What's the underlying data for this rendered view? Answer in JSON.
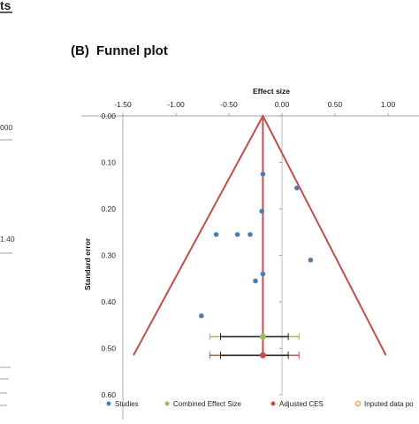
{
  "left_panel": {
    "title_fragment": "ts",
    "value_top": "000",
    "value_mid": "1.40"
  },
  "panel": {
    "title_prefix": "(B)",
    "title": "Funnel plot"
  },
  "chart_data": {
    "type": "scatter",
    "title": "Funnel plot",
    "xlabel": "Effect size",
    "ylabel": "Standard error",
    "xlim": [
      -1.5,
      1.0
    ],
    "ylim": [
      0.0,
      0.6
    ],
    "y_reversed": true,
    "x_ticks": [
      "-1.50",
      "-1.00",
      "-0.50",
      "0.00",
      "0.50",
      "1.00"
    ],
    "x_tick_values": [
      -1.5,
      -1.0,
      -0.5,
      0.0,
      0.5,
      1.0
    ],
    "y_ticks": [
      "0.00",
      "0.10",
      "0.20",
      "0.30",
      "0.40",
      "0.50",
      "0.60"
    ],
    "y_tick_values": [
      0.0,
      0.1,
      0.2,
      0.3,
      0.4,
      0.5,
      0.6
    ],
    "x_axis_position": "top",
    "grid": false,
    "legend_position": "bottom",
    "studies": [
      {
        "x": -0.18,
        "y": 0.125
      },
      {
        "x": 0.14,
        "y": 0.155
      },
      {
        "x": -0.19,
        "y": 0.205
      },
      {
        "x": -0.62,
        "y": 0.255
      },
      {
        "x": -0.42,
        "y": 0.255
      },
      {
        "x": -0.3,
        "y": 0.255
      },
      {
        "x": 0.27,
        "y": 0.31
      },
      {
        "x": -0.18,
        "y": 0.34
      },
      {
        "x": -0.25,
        "y": 0.355
      },
      {
        "x": -0.76,
        "y": 0.43
      }
    ],
    "combined_effect_size": {
      "x": -0.18,
      "y": 0.475,
      "ci": [
        -0.68,
        0.16
      ]
    },
    "adjusted_ces": {
      "x": -0.18,
      "y": 0.515,
      "ci": [
        -0.68,
        0.16
      ]
    },
    "adjusted_ces_line": {
      "x": -0.18
    },
    "funnel": {
      "apex": [
        -0.18,
        0.0
      ],
      "base_y": 0.515,
      "base_left": -1.4,
      "base_right": 0.98
    },
    "legend": [
      {
        "label": "Studies",
        "color": "#4a7ebb",
        "marker": "dot"
      },
      {
        "label": "Combined Effect Size",
        "color": "#9bbb59",
        "marker": "dot"
      },
      {
        "label": "Adjusted CES",
        "color": "#c0504d",
        "marker": "dot"
      },
      {
        "label": "Inputed data po",
        "color": "#f0a030",
        "marker": "ring"
      }
    ],
    "colors": {
      "funnel": "#c0504d",
      "studies": "#4a7ebb",
      "combined": "#9bbb59",
      "adjusted": "#c0504d",
      "ci_whisker": "#222222"
    }
  }
}
